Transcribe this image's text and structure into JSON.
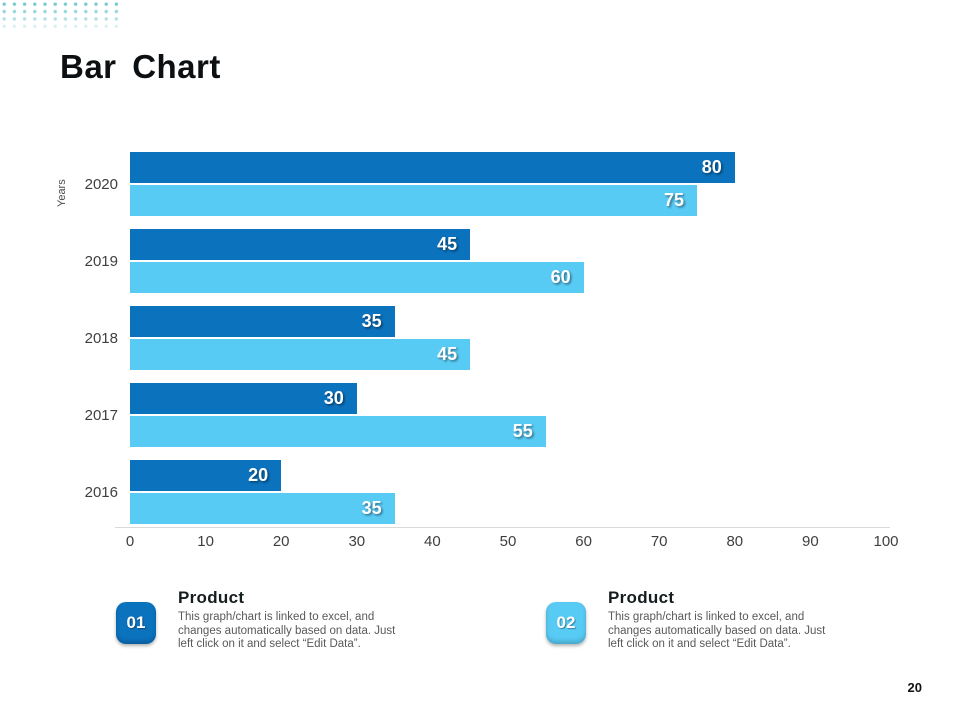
{
  "slide": {
    "title": "Bar Chart",
    "page_number": "20"
  },
  "chart_data": {
    "type": "bar",
    "orientation": "horizontal",
    "title": "",
    "xlabel": "",
    "ylabel": "Years",
    "xlim": [
      0,
      100
    ],
    "xticks": [
      0,
      10,
      20,
      30,
      40,
      50,
      60,
      70,
      80,
      90,
      100
    ],
    "grid": false,
    "value_labels": true,
    "category_order": "top-to-bottom",
    "categories": [
      "2020",
      "2019",
      "2018",
      "2017",
      "2016"
    ],
    "series": [
      {
        "name": "Product 01",
        "color": "#0b72be",
        "values": [
          80,
          45,
          35,
          30,
          20
        ]
      },
      {
        "name": "Product 02",
        "color": "#58cbf5",
        "values": [
          75,
          60,
          45,
          55,
          35
        ]
      }
    ]
  },
  "legend": {
    "items": [
      {
        "number": "01",
        "title": "Product",
        "description": "This graph/chart is linked to excel, and changes automatically based on data. Just left click on it and select “Edit Data”.",
        "color": "#0b72be"
      },
      {
        "number": "02",
        "title": "Product",
        "description": "This graph/chart is linked to excel, and changes automatically based on data. Just left click on it and select “Edit Data”.",
        "color": "#58cbf5"
      }
    ]
  },
  "decorations": {
    "dot_color": "#72c7ce"
  }
}
